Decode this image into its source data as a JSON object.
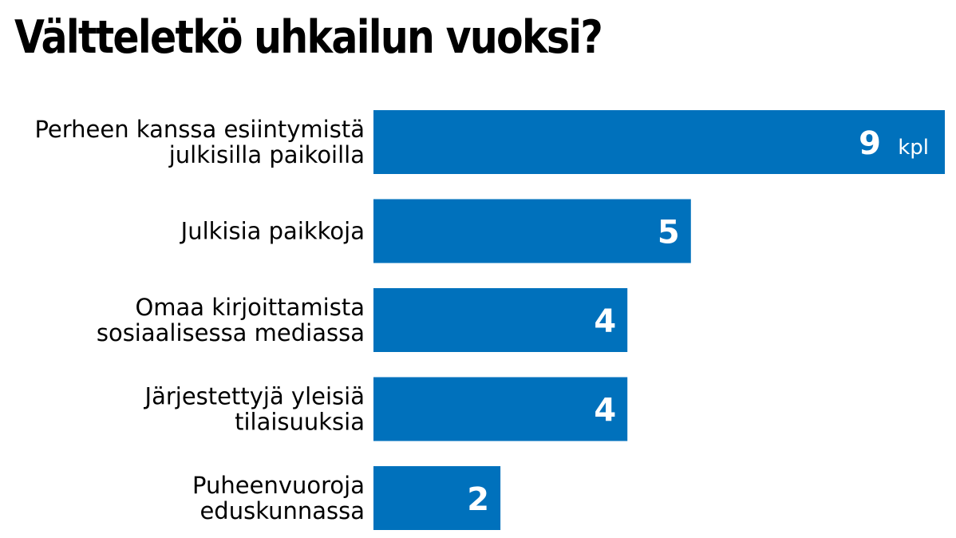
{
  "chart_data": {
    "type": "bar",
    "orientation": "horizontal",
    "title": "Vältteletkö uhkailun vuoksi?",
    "unit": "kpl",
    "categories": [
      [
        "Perheen kanssa esiintymistä",
        "julkisilla paikoilla"
      ],
      [
        "Julkisia paikkoja"
      ],
      [
        "Omaa kirjoittamista",
        "sosiaalisessa mediassa"
      ],
      [
        "Järjestettyjä yleisiä",
        "tilaisuuksia"
      ],
      [
        "Puheenvuoroja",
        "eduskunnassa"
      ]
    ],
    "values": [
      9,
      5,
      4,
      4,
      2
    ],
    "xlim": [
      0,
      9
    ],
    "grid": false,
    "legend": "none",
    "bar_color": "#0071bc",
    "label_color": "#ffffff"
  }
}
